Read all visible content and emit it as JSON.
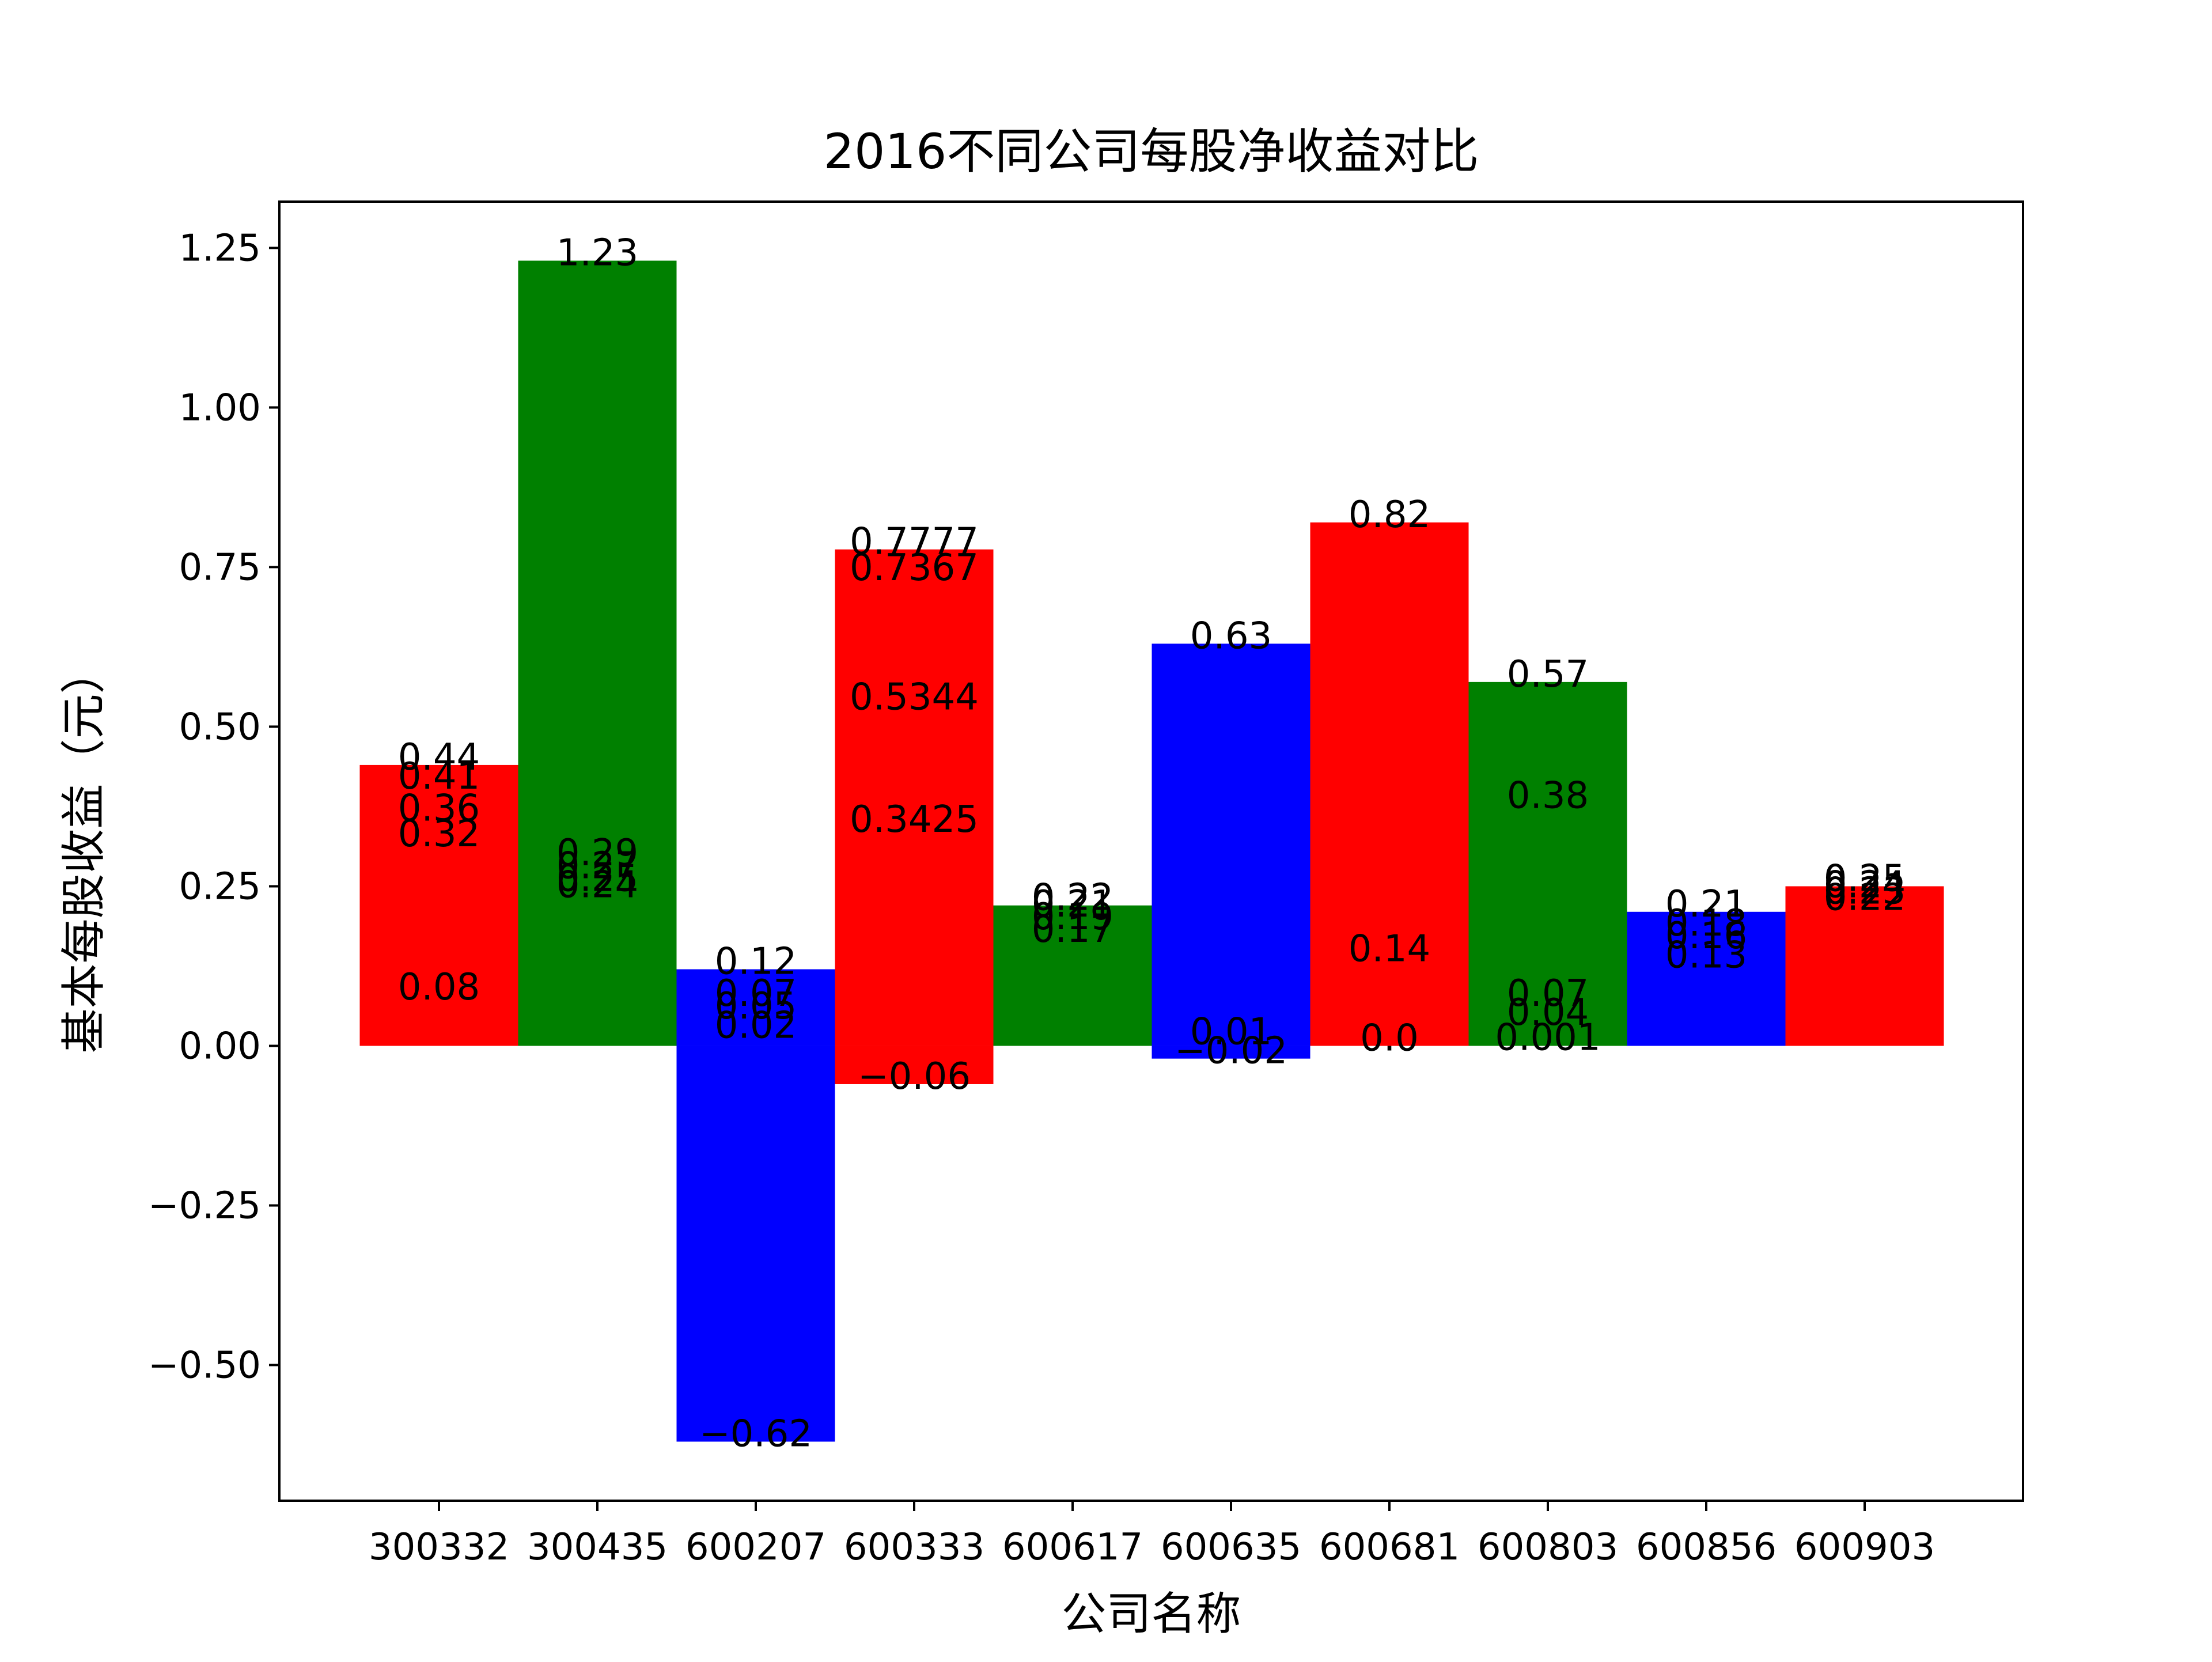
{
  "chart_data": {
    "type": "bar",
    "title": "2016不同公司每股净收益对比",
    "xlabel": "公司名称",
    "ylabel": "基本每股收益（元）",
    "ylim": [
      -0.7125,
      1.3225
    ],
    "yticks": [
      -0.5,
      -0.25,
      0.0,
      0.25,
      0.5,
      0.75,
      1.0,
      1.25
    ],
    "ytick_labels": [
      "−0.50",
      "−0.25",
      "0.00",
      "0.25",
      "0.50",
      "0.75",
      "1.00",
      "1.25"
    ],
    "grid": false,
    "legend": "none",
    "categories": [
      "300332",
      "300435",
      "600207",
      "600333",
      "600617",
      "600635",
      "600681",
      "600803",
      "600856",
      "600903"
    ],
    "bar_colors": [
      "#ff0000",
      "#008000",
      "#0000ff",
      "#ff0000",
      "#008000",
      "#0000ff",
      "#ff0000",
      "#008000",
      "#0000ff",
      "#ff0000"
    ],
    "values": [
      0.44,
      1.23,
      0.12,
      0.7777,
      0.22,
      0.63,
      0.82,
      0.57,
      0.21,
      0.25
    ],
    "data_labels": [
      [
        "0.44",
        "0.41",
        "0.36",
        "0.32",
        "0.08"
      ],
      [
        "1.23",
        "0.29",
        "0.27",
        "0.25",
        "0.24"
      ],
      [
        "0.12",
        "0.07",
        "0.05",
        "0.02",
        "−0.62"
      ],
      [
        "0.7777",
        "0.7367",
        "0.5344",
        "0.3425",
        "−0.06"
      ],
      [
        "0.22",
        "0.21",
        "0.19",
        "0.17"
      ],
      [
        "0.63",
        "0.01",
        "−0.02"
      ],
      [
        "0.82",
        "0.14",
        "0.0"
      ],
      [
        "0.57",
        "0.38",
        "0.07",
        "0.04",
        "0.001"
      ],
      [
        "0.21",
        "0.18",
        "0.16",
        "0.13"
      ],
      [
        "0.25",
        "0.24",
        "0.23",
        "0.22"
      ]
    ]
  }
}
